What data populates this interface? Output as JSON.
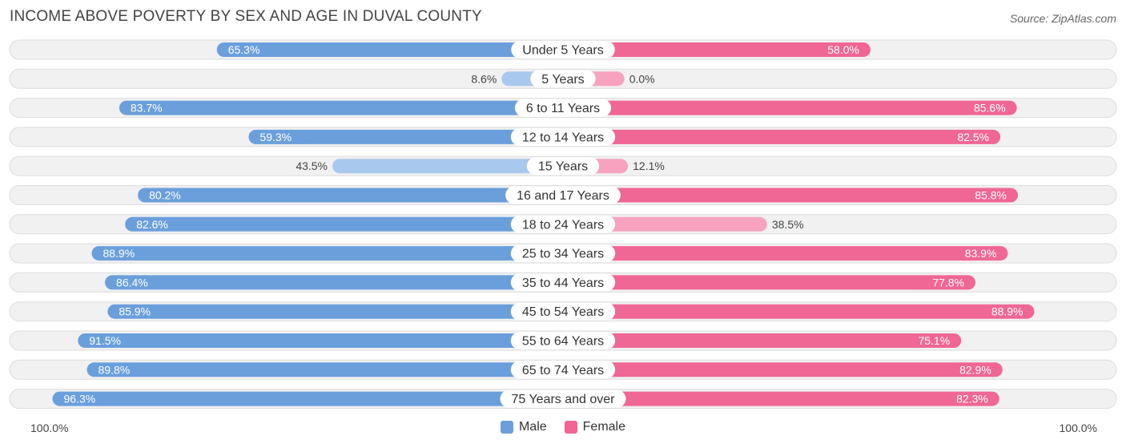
{
  "title": "INCOME ABOVE POVERTY BY SEX AND AGE IN DUVAL COUNTY",
  "source": "Source: ZipAtlas.com",
  "colors": {
    "male_strong": "#6a9fdc",
    "male_light": "#a9c8ee",
    "female_strong": "#f06694",
    "female_light": "#f7a3c0",
    "row_bg": "#f1f1f1",
    "row_border": "#dddddd"
  },
  "legend": {
    "male": "Male",
    "female": "Female"
  },
  "axis": {
    "left_label": "100.0%",
    "right_label": "100.0%"
  },
  "chart_data": {
    "type": "bar",
    "orientation": "horizontal-diverging",
    "title": "INCOME ABOVE POVERTY BY SEX AND AGE IN DUVAL COUNTY",
    "xlim": [
      -100,
      100
    ],
    "categories": [
      "Under 5 Years",
      "5 Years",
      "6 to 11 Years",
      "12 to 14 Years",
      "15 Years",
      "16 and 17 Years",
      "18 to 24 Years",
      "25 to 34 Years",
      "35 to 44 Years",
      "45 to 54 Years",
      "55 to 64 Years",
      "65 to 74 Years",
      "75 Years and over"
    ],
    "series": [
      {
        "name": "Male",
        "values": [
          65.3,
          8.6,
          83.7,
          59.3,
          43.5,
          80.2,
          82.6,
          88.9,
          86.4,
          85.9,
          91.5,
          89.8,
          96.3
        ],
        "labels": [
          "65.3%",
          "8.6%",
          "83.7%",
          "59.3%",
          "43.5%",
          "80.2%",
          "82.6%",
          "88.9%",
          "86.4%",
          "85.9%",
          "91.5%",
          "89.8%",
          "96.3%"
        ]
      },
      {
        "name": "Female",
        "values": [
          58.0,
          0.0,
          85.6,
          82.5,
          12.1,
          85.8,
          38.5,
          83.9,
          77.8,
          88.9,
          75.1,
          82.9,
          82.3
        ],
        "labels": [
          "58.0%",
          "0.0%",
          "85.6%",
          "82.5%",
          "12.1%",
          "85.8%",
          "38.5%",
          "83.9%",
          "77.8%",
          "88.9%",
          "75.1%",
          "82.9%",
          "82.3%"
        ]
      }
    ],
    "legend_position": "bottom-center"
  }
}
